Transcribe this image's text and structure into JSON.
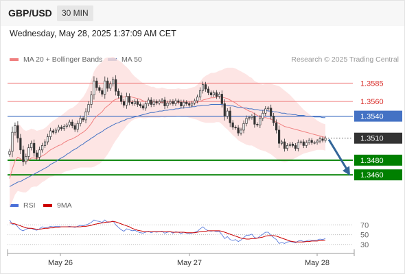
{
  "header": {
    "symbol": "GBP/USD",
    "timeframe": "30 MIN",
    "timestamp": "Wednesday, May 28, 2025 1:37:09 AM CET"
  },
  "legend": {
    "ma20": "MA 20 + Bollinger Bands",
    "ma50": "MA 50",
    "rsi": "RSI",
    "rsi_ma": "9MA"
  },
  "credit": "Research © 2025 Trading Central",
  "colors": {
    "up_candle": "#333333",
    "down_candle": "#333333",
    "ma20": "#f08080",
    "ma50": "#4472c4",
    "bollinger_fill": "#fde0df",
    "resistance": "#f08080",
    "pivot": "#4472c4",
    "support": "#008000",
    "rsi": "#4a6fd8",
    "rsi_ma": "#cc0000",
    "arrow": "#336699",
    "current_price_box": "#333333"
  },
  "chart_data": [
    {
      "type": "candlestick",
      "x_labels": [
        "May 26",
        "May 27",
        "May 28"
      ],
      "ylim": [
        1.3435,
        1.3605
      ],
      "levels": [
        {
          "label": "1.3585",
          "value": 1.3585,
          "kind": "resistance"
        },
        {
          "label": "1.3560",
          "value": 1.356,
          "kind": "resistance"
        },
        {
          "label": "1.3540",
          "value": 1.354,
          "kind": "pivot"
        },
        {
          "label": "1.3510",
          "value": 1.351,
          "kind": "current"
        },
        {
          "label": "1.3480",
          "value": 1.348,
          "kind": "support"
        },
        {
          "label": "1.3460",
          "value": 1.346,
          "kind": "support"
        }
      ],
      "close": [
        1.3492,
        1.3518,
        1.3527,
        1.351,
        1.3494,
        1.3478,
        1.3485,
        1.3497,
        1.3503,
        1.349,
        1.3484,
        1.3494,
        1.35,
        1.3505,
        1.3512,
        1.352,
        1.3518,
        1.3521,
        1.3525,
        1.3523,
        1.3526,
        1.3528,
        1.3532,
        1.3527,
        1.3522,
        1.353,
        1.3537,
        1.3535,
        1.3546,
        1.3556,
        1.3569,
        1.3588,
        1.3579,
        1.3575,
        1.357,
        1.3588,
        1.3578,
        1.3584,
        1.359,
        1.3574,
        1.3568,
        1.356,
        1.3555,
        1.3567,
        1.3559,
        1.3557,
        1.356,
        1.3556,
        1.3554,
        1.3551,
        1.3557,
        1.3562,
        1.3556,
        1.356,
        1.3558,
        1.356,
        1.3562,
        1.3554,
        1.3558,
        1.356,
        1.3557,
        1.3561,
        1.3559,
        1.3554,
        1.3559,
        1.3557,
        1.3555,
        1.3558,
        1.3561,
        1.3566,
        1.3575,
        1.3583,
        1.3577,
        1.3572,
        1.3569,
        1.3572,
        1.3567,
        1.357,
        1.3557,
        1.354,
        1.3547,
        1.3531,
        1.3525,
        1.3524,
        1.3517,
        1.3521,
        1.353,
        1.3537,
        1.3538,
        1.354,
        1.3529,
        1.3528,
        1.3537,
        1.3544,
        1.355,
        1.3551,
        1.354,
        1.3531,
        1.3521,
        1.3503,
        1.3505,
        1.3496,
        1.35,
        1.3502,
        1.35,
        1.3496,
        1.3504,
        1.3505,
        1.35,
        1.3504,
        1.3507,
        1.3504,
        1.3504,
        1.3506,
        1.3509,
        1.3507,
        1.351
      ],
      "ma20": [
        1.3455,
        1.3468,
        1.3479,
        1.3484,
        1.3482,
        1.3479,
        1.3478,
        1.348,
        1.3483,
        1.3483,
        1.3482,
        1.3484,
        1.3486,
        1.3488,
        1.3491,
        1.3494,
        1.3496,
        1.3498,
        1.35,
        1.3501,
        1.3504,
        1.3506,
        1.3508,
        1.3509,
        1.3511,
        1.3513,
        1.3516,
        1.3518,
        1.3521,
        1.3525,
        1.353,
        1.3536,
        1.354,
        1.3543,
        1.3546,
        1.3551,
        1.3554,
        1.3557,
        1.3561,
        1.3563,
        1.3564,
        1.3566,
        1.3566,
        1.3567,
        1.3567,
        1.3566,
        1.3565,
        1.3564,
        1.3563,
        1.3561,
        1.356,
        1.356,
        1.3559,
        1.3559,
        1.3558,
        1.3558,
        1.3559,
        1.3558,
        1.3558,
        1.3558,
        1.3558,
        1.3558,
        1.3559,
        1.3558,
        1.3558,
        1.3558,
        1.3558,
        1.3558,
        1.3558,
        1.3559,
        1.356,
        1.3562,
        1.3563,
        1.3564,
        1.3565,
        1.3565,
        1.3566,
        1.3567,
        1.3566,
        1.3565,
        1.3564,
        1.3562,
        1.356,
        1.3558,
        1.3555,
        1.3553,
        1.3551,
        1.3549,
        1.3547,
        1.3546,
        1.3543,
        1.3541,
        1.3539,
        1.3538,
        1.3538,
        1.3537,
        1.3536,
        1.3534,
        1.3532,
        1.353,
        1.3528,
        1.3526,
        1.3525,
        1.3524,
        1.3523,
        1.3522,
        1.3521,
        1.352,
        1.3519,
        1.3518,
        1.3517,
        1.3516,
        1.3515,
        1.3514,
        1.3513,
        1.3512,
        1.3511
      ],
      "bb_width": [
        0.004,
        0.0044,
        0.0046,
        0.0046,
        0.0045,
        0.0043,
        0.0042,
        0.0041,
        0.004,
        0.0039,
        0.0038,
        0.0037,
        0.0036,
        0.0036,
        0.0036,
        0.0037,
        0.0038,
        0.0038,
        0.0039,
        0.004,
        0.004,
        0.0041,
        0.0042,
        0.0042,
        0.0043,
        0.0044,
        0.0046,
        0.0048,
        0.0051,
        0.0055,
        0.006,
        0.0065,
        0.0067,
        0.0068,
        0.0068,
        0.0068,
        0.0066,
        0.0063,
        0.006,
        0.0056,
        0.0052,
        0.0048,
        0.0044,
        0.004,
        0.0036,
        0.0032,
        0.0029,
        0.0027,
        0.0025,
        0.0024,
        0.0023,
        0.0022,
        0.0021,
        0.0021,
        0.002,
        0.002,
        0.002,
        0.002,
        0.0019,
        0.0019,
        0.0019,
        0.0019,
        0.0019,
        0.0019,
        0.0019,
        0.0019,
        0.002,
        0.0021,
        0.0022,
        0.0024,
        0.0027,
        0.003,
        0.0032,
        0.0033,
        0.0034,
        0.0034,
        0.0034,
        0.0035,
        0.0037,
        0.004,
        0.0042,
        0.0044,
        0.0046,
        0.0047,
        0.0048,
        0.0048,
        0.0048,
        0.0048,
        0.0047,
        0.0046,
        0.0045,
        0.0045,
        0.0045,
        0.0045,
        0.0046,
        0.0047,
        0.0048,
        0.0049,
        0.005,
        0.0051,
        0.005,
        0.0049,
        0.0047,
        0.0045,
        0.0042,
        0.0039,
        0.0036,
        0.0033,
        0.003,
        0.0028,
        0.0026,
        0.0024,
        0.0022,
        0.002,
        0.0019,
        0.0018,
        0.0018
      ],
      "ma50": [
        1.3444,
        1.3446,
        1.3448,
        1.345,
        1.3451,
        1.3453,
        1.3455,
        1.3457,
        1.3459,
        1.3461,
        1.3463,
        1.3465,
        1.3467,
        1.3469,
        1.3471,
        1.3474,
        1.3476,
        1.3478,
        1.3481,
        1.3483,
        1.3485,
        1.3488,
        1.349,
        1.3493,
        1.3495,
        1.3497,
        1.35,
        1.3502,
        1.3505,
        1.3507,
        1.351,
        1.3512,
        1.3515,
        1.3517,
        1.3519,
        1.3522,
        1.3524,
        1.3526,
        1.3528,
        1.353,
        1.3531,
        1.3533,
        1.3534,
        1.3536,
        1.3537,
        1.3538,
        1.3539,
        1.354,
        1.3541,
        1.3542,
        1.3543,
        1.3544,
        1.3545,
        1.3545,
        1.3546,
        1.3547,
        1.3547,
        1.3548,
        1.3548,
        1.3549,
        1.3549,
        1.355,
        1.355,
        1.3551,
        1.3551,
        1.3552,
        1.3552,
        1.3553,
        1.3553,
        1.3554,
        1.3554,
        1.3555,
        1.3555,
        1.3555,
        1.3556,
        1.3556,
        1.3556,
        1.3556,
        1.3556,
        1.3555,
        1.3555,
        1.3554,
        1.3554,
        1.3553,
        1.3552,
        1.3552,
        1.3551,
        1.3551,
        1.355,
        1.355,
        1.3549,
        1.3549,
        1.3548,
        1.3548,
        1.3548,
        1.3547,
        1.3547,
        1.3546,
        1.3546,
        1.3545,
        1.3544,
        1.3544,
        1.3543,
        1.3543,
        1.3542,
        1.3542,
        1.3541,
        1.3541,
        1.3541,
        1.354,
        1.354,
        1.354,
        1.3539,
        1.3539,
        1.3539,
        1.3538,
        1.3538
      ],
      "projection": {
        "from": 1.351,
        "to": 1.346
      }
    },
    {
      "type": "line",
      "ylim": [
        20,
        90
      ],
      "yticks": [
        30,
        50,
        70
      ],
      "series": [
        {
          "name": "RSI",
          "values": [
            80,
            71,
            72,
            66,
            60,
            58,
            61,
            63,
            63,
            60,
            59,
            62,
            66,
            64,
            65,
            67,
            66,
            67,
            67,
            66,
            66,
            66,
            67,
            66,
            65,
            67,
            69,
            68,
            70,
            72,
            75,
            80,
            78,
            77,
            75,
            80,
            75,
            76,
            78,
            70,
            65,
            60,
            57,
            62,
            60,
            58,
            59,
            56,
            54,
            53,
            55,
            57,
            54,
            56,
            55,
            56,
            57,
            53,
            55,
            56,
            53,
            56,
            55,
            52,
            55,
            53,
            52,
            53,
            55,
            57,
            62,
            66,
            61,
            58,
            57,
            58,
            56,
            57,
            50,
            42,
            46,
            40,
            38,
            40,
            36,
            39,
            44,
            49,
            49,
            51,
            44,
            43,
            47,
            51,
            55,
            55,
            49,
            44,
            40,
            32,
            34,
            32,
            35,
            36,
            35,
            33,
            37,
            38,
            36,
            37,
            39,
            38,
            38,
            39,
            41,
            40,
            42
          ]
        },
        {
          "name": "9MA",
          "values": [
            74,
            73,
            72,
            70,
            68,
            66,
            64,
            63,
            63,
            62,
            61,
            61,
            62,
            63,
            63,
            64,
            64,
            65,
            65,
            66,
            66,
            66,
            66,
            66,
            66,
            66,
            66,
            67,
            67,
            68,
            69,
            71,
            72,
            73,
            74,
            75,
            76,
            76,
            77,
            76,
            74,
            72,
            70,
            68,
            66,
            63,
            61,
            59,
            58,
            57,
            56,
            56,
            56,
            56,
            56,
            56,
            56,
            56,
            56,
            56,
            55,
            55,
            55,
            55,
            55,
            54,
            54,
            54,
            54,
            55,
            56,
            57,
            57,
            58,
            58,
            58,
            58,
            58,
            57,
            55,
            53,
            51,
            49,
            47,
            45,
            43,
            42,
            41,
            41,
            42,
            42,
            43,
            44,
            45,
            47,
            48,
            48,
            48,
            47,
            45,
            43,
            41,
            39,
            37,
            36,
            35,
            35,
            35,
            35,
            36,
            36,
            37,
            37,
            37,
            38,
            38,
            39
          ]
        }
      ]
    }
  ]
}
